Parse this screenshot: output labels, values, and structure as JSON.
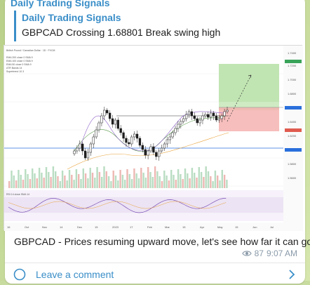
{
  "channel": {
    "name": "Daily Trading Signals"
  },
  "reply": {
    "title": "Daily Trading Signals",
    "text": "GBPCAD Crossing 1.68801 Break swing high"
  },
  "chart": {
    "header": "British Pound / Canadian Dollar · 1D · FXCM",
    "x_labels": [
      "16",
      "Oct",
      "Nov",
      "14",
      "Dec",
      "15",
      "2023",
      "17",
      "Feb",
      "Mar",
      "15",
      "Apr",
      "May",
      "15",
      "Jun",
      "Jul"
    ]
  },
  "message": {
    "text": "GBPCAD - Prices resuming upward move, let's see how far it can go!"
  },
  "meta": {
    "views": "87",
    "time": "9:07 AM",
    "icon": "eye-icon"
  },
  "comment": {
    "label": "Leave a comment",
    "icon": "comment-icon",
    "chevron": "chevron-right-icon"
  },
  "colors": {
    "accent": "#3a8ec8",
    "up_candle": "#ffffff",
    "down_candle": "#1d1d1d",
    "target_zone": "#b6e1a4",
    "stop_zone": "#f4b3b0"
  }
}
